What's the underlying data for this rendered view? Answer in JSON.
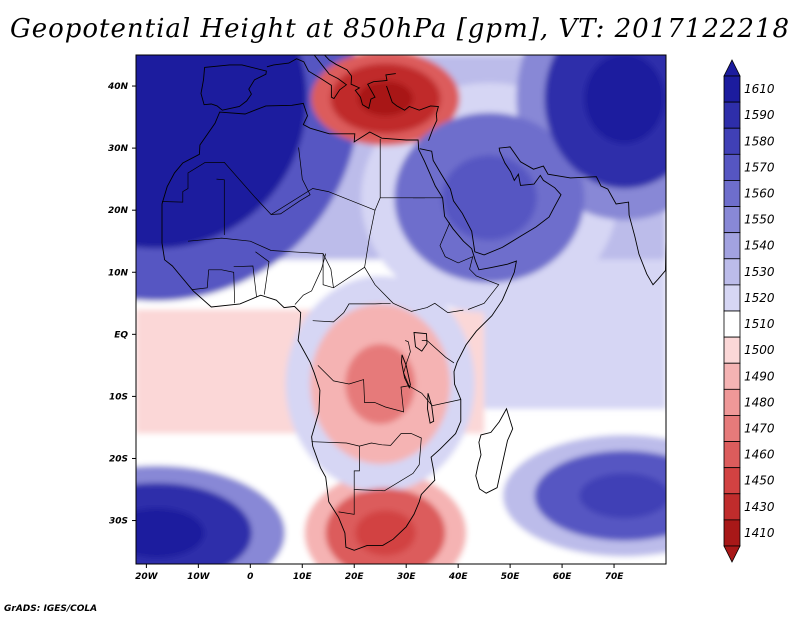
{
  "chart_data": {
    "type": "heatmap",
    "title": "Geopotential Height at 850hPa [gpm], VT: 2017122218",
    "variable": "Geopotential Height",
    "level": "850hPa",
    "units": "gpm",
    "valid_time": "2017122218",
    "x_axis": {
      "label": "",
      "range": [
        -22,
        80
      ],
      "ticks": [
        -20,
        -10,
        0,
        10,
        20,
        30,
        40,
        50,
        60,
        70
      ],
      "tick_labels": [
        "20W",
        "10W",
        "0",
        "10E",
        "20E",
        "30E",
        "40E",
        "50E",
        "60E",
        "70E"
      ]
    },
    "y_axis": {
      "label": "",
      "range": [
        -37,
        45
      ],
      "ticks": [
        40,
        30,
        20,
        10,
        0,
        -10,
        -20,
        -30
      ],
      "tick_labels": [
        "40N",
        "30N",
        "20N",
        "10N",
        "EQ",
        "10S",
        "20S",
        "30S"
      ]
    },
    "colorbar": {
      "labels": [
        "1610",
        "1590",
        "1580",
        "1570",
        "1560",
        "1550",
        "1540",
        "1530",
        "1520",
        "1510",
        "1500",
        "1490",
        "1480",
        "1470",
        "1460",
        "1450",
        "1430",
        "1410"
      ],
      "colors": [
        "#1c1c9e",
        "#2e2eaa",
        "#4040b6",
        "#5656c2",
        "#6e6ecc",
        "#8888d6",
        "#a2a2e0",
        "#bcbcea",
        "#d6d6f4",
        "#ffffff",
        "#fbd7d7",
        "#f5b3b3",
        "#ef9898",
        "#e67a7a",
        "#dc5c5c",
        "#d24242",
        "#c02c2c",
        "#a81818"
      ]
    },
    "features": [
      {
        "name": "high-atlantic-north",
        "lon": -18,
        "lat": 38,
        "value": 1610
      },
      {
        "name": "high-arabia",
        "lon": 46,
        "lat": 22,
        "value": 1560
      },
      {
        "name": "high-iran",
        "lon": 72,
        "lat": 38,
        "value": 1590
      },
      {
        "name": "low-mediterranean",
        "lon": 26,
        "lat": 38,
        "value": 1430
      },
      {
        "name": "low-southern-africa",
        "lon": 26,
        "lat": -32,
        "value": 1460
      },
      {
        "name": "high-south-atlantic",
        "lon": -18,
        "lat": -32,
        "value": 1590
      },
      {
        "name": "high-south-indian",
        "lon": 72,
        "lat": -26,
        "value": 1570
      },
      {
        "name": "trough-central-africa",
        "lon": 25,
        "lat": -8,
        "value": 1490
      }
    ]
  },
  "credit": "GrADS: IGES/COLA"
}
